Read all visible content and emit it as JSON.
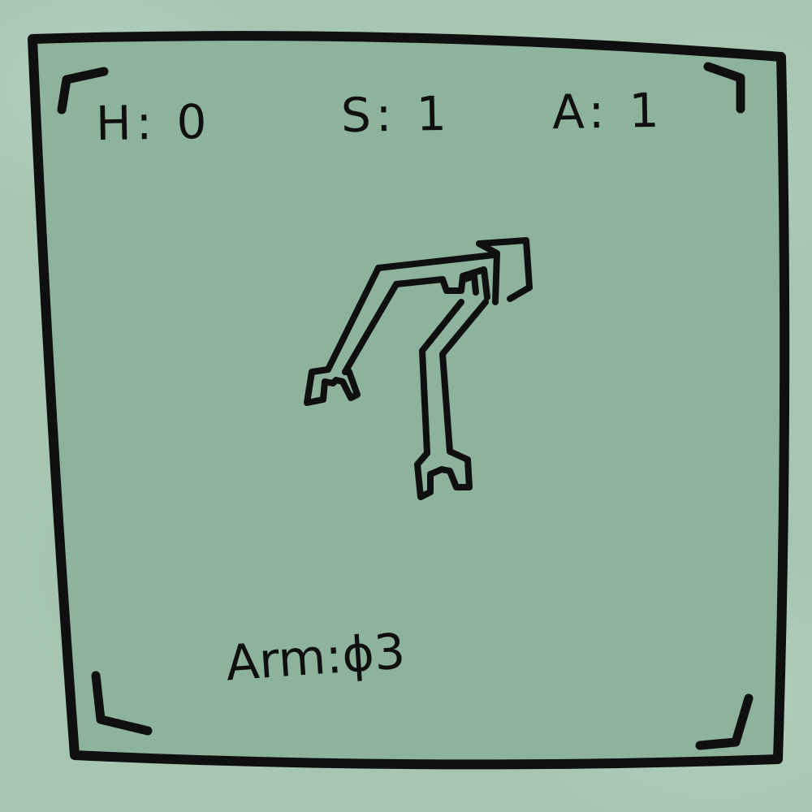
{
  "hud": {
    "stats": [
      {
        "key": "H",
        "value": "0",
        "text": "H: 0"
      },
      {
        "key": "S",
        "value": "1",
        "text": "S: 1"
      },
      {
        "key": "A",
        "value": "1",
        "text": "A: 1"
      }
    ]
  },
  "card": {
    "label": "Arm:ϕ3",
    "icon": "robot-arm-icon"
  },
  "colors": {
    "background": "#a6c6b2",
    "card_fill": "#8db39c",
    "ink": "#0f0f0f"
  }
}
